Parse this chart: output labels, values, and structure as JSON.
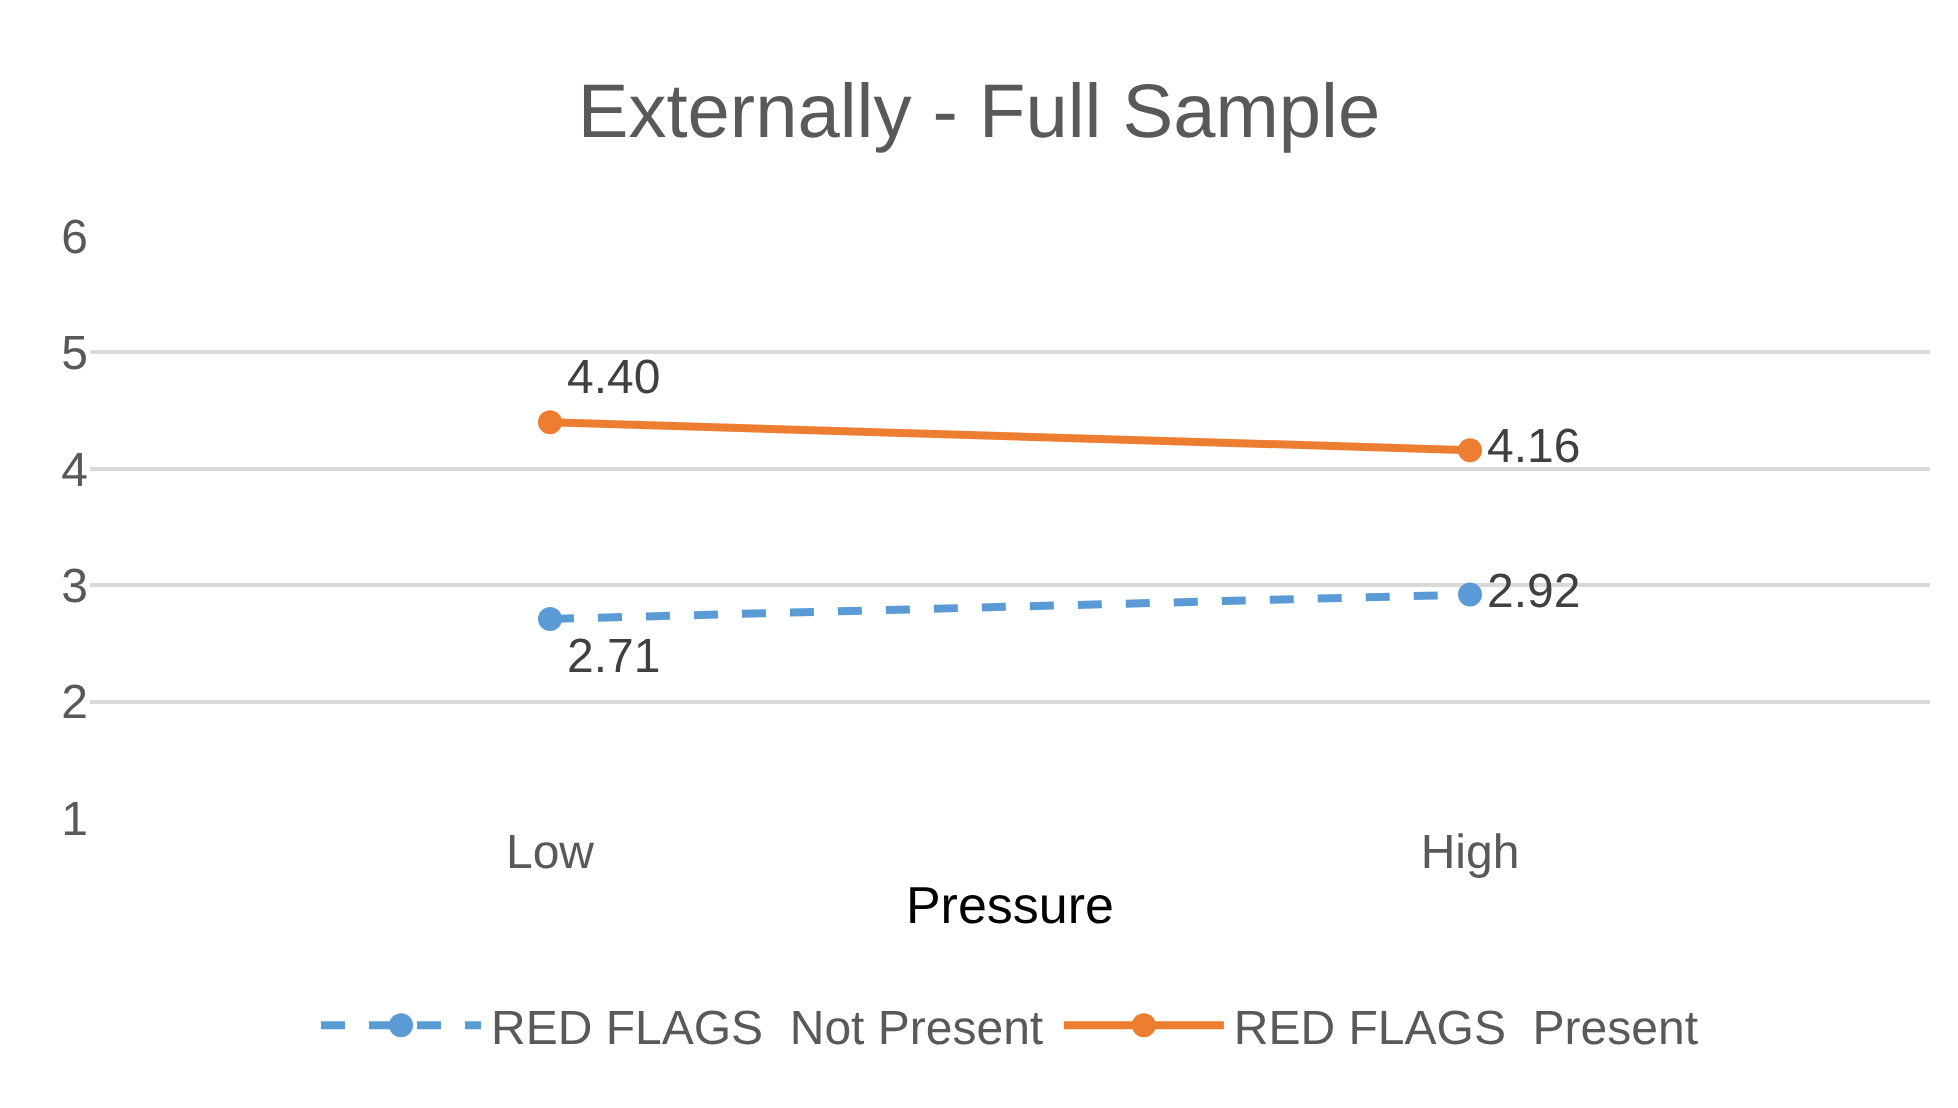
{
  "chart_data": {
    "type": "line",
    "title": "Externally - Full Sample",
    "xlabel": "Pressure",
    "categories": [
      "Low",
      "High"
    ],
    "series": [
      {
        "name": "RED FLAGS  Not Present",
        "color": "#5b9bd5",
        "values": [
          2.71,
          2.92
        ],
        "value_labels": [
          "2.71",
          "2.92"
        ],
        "line_style": "dashed",
        "marker": "circle"
      },
      {
        "name": "RED FLAGS  Present",
        "color": "#ed7d31",
        "values": [
          4.4,
          4.16
        ],
        "value_labels": [
          "4.40",
          "4.16"
        ],
        "line_style": "solid",
        "marker": "circle"
      }
    ],
    "ylim": [
      1,
      6
    ],
    "yticks": [
      1,
      2,
      3,
      4,
      5,
      6
    ],
    "grid": "y",
    "legend": "bottom"
  }
}
